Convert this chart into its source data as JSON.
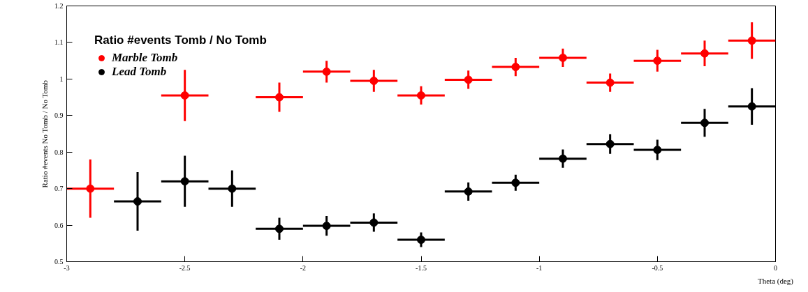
{
  "chart_data": {
    "type": "scatter",
    "legend_title": "Ratio #events Tomb / No Tomb",
    "xlabel": "Theta (deg)",
    "ylabel": "Ratio #events No Tomb / No Tomb",
    "x": [
      -2.9,
      -2.7,
      -2.5,
      -2.3,
      -2.1,
      -1.9,
      -1.7,
      -1.5,
      -1.3,
      -1.1,
      -0.9,
      -0.7,
      -0.5,
      -0.3,
      -0.1
    ],
    "series": [
      {
        "name": "Marble Tomb",
        "color": "#ff0000",
        "values": [
          0.7,
          null,
          0.955,
          null,
          0.95,
          1.02,
          0.995,
          0.955,
          0.998,
          1.033,
          1.058,
          0.99,
          1.05,
          1.07,
          1.105
        ],
        "errors": [
          0.08,
          null,
          0.07,
          null,
          0.04,
          0.03,
          0.03,
          0.025,
          0.025,
          0.025,
          0.025,
          0.025,
          0.03,
          0.035,
          0.05
        ],
        "xerrors": [
          0.1,
          null,
          0.1,
          null,
          0.1,
          0.1,
          0.1,
          0.1,
          0.1,
          0.1,
          0.1,
          0.1,
          0.1,
          0.1,
          0.1
        ]
      },
      {
        "name": "Lead Tomb",
        "color": "#000000",
        "values": [
          null,
          0.665,
          0.72,
          0.7,
          0.59,
          0.598,
          0.607,
          0.56,
          0.692,
          0.716,
          0.782,
          0.822,
          0.806,
          0.88,
          0.925
        ],
        "errors": [
          null,
          0.08,
          0.07,
          0.05,
          0.03,
          0.027,
          0.025,
          0.02,
          0.025,
          0.022,
          0.025,
          0.027,
          0.028,
          0.038,
          0.05
        ],
        "xerrors": [
          null,
          0.1,
          0.1,
          0.1,
          0.1,
          0.1,
          0.1,
          0.1,
          0.1,
          0.1,
          0.1,
          0.1,
          0.1,
          0.1,
          0.1
        ]
      }
    ],
    "xlim": [
      -3,
      0
    ],
    "ylim": [
      0.5,
      1.2
    ],
    "xticks": [
      -3,
      -2.5,
      -2,
      -1.5,
      -1,
      -0.5,
      0
    ],
    "yticks": [
      0.5,
      0.6,
      0.7,
      0.8,
      0.9,
      1,
      1.1,
      1.2
    ],
    "grid": false,
    "legend": "top left",
    "marker": "circle"
  }
}
